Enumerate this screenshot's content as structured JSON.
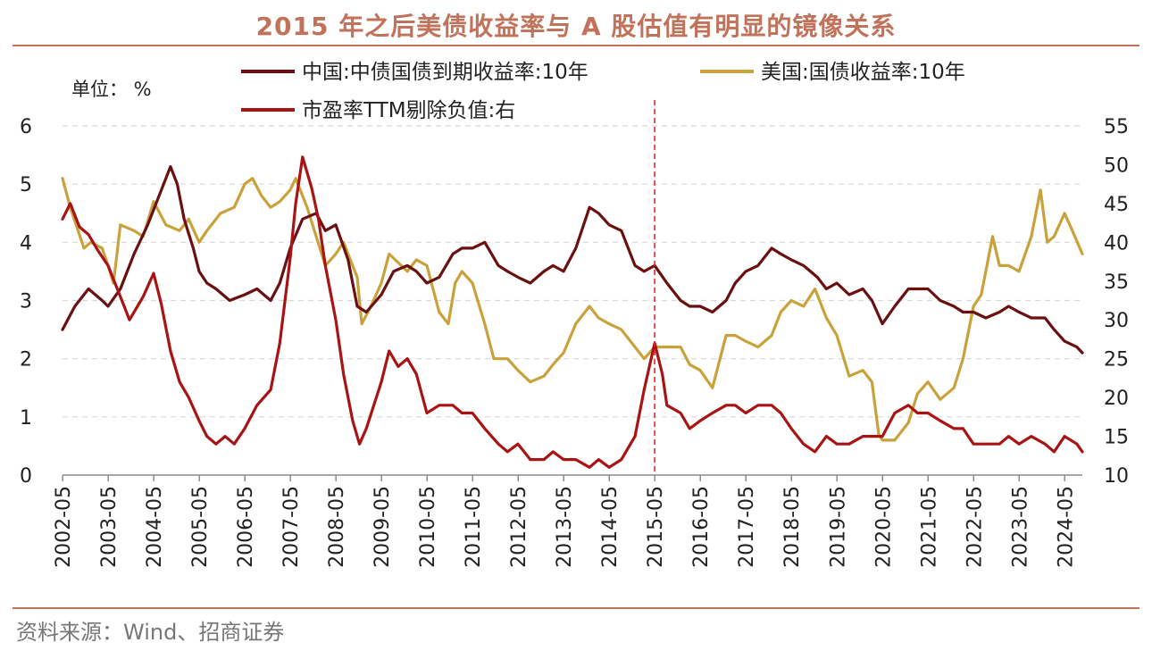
{
  "title": "2015 年之后美债收益率与 A 股估值有明显的镜像关系",
  "source": "资料来源：Wind、招商证券",
  "chart_data": {
    "type": "line",
    "unit_label": "单位： %",
    "x_tick_labels": [
      "2002-05",
      "2003-05",
      "2004-05",
      "2005-05",
      "2006-05",
      "2007-05",
      "2008-05",
      "2009-05",
      "2010-05",
      "2011-05",
      "2012-05",
      "2013-05",
      "2014-05",
      "2015-05",
      "2016-05",
      "2017-05",
      "2018-05",
      "2019-05",
      "2020-05",
      "2021-05",
      "2022-05",
      "2023-05",
      "2024-05"
    ],
    "x_range": [
      2002.33,
      2024.72
    ],
    "y_left": {
      "ticks": [
        "0",
        "1",
        "2",
        "3",
        "4",
        "5",
        "6"
      ],
      "range": [
        0,
        6
      ]
    },
    "y_right": {
      "ticks": [
        "10",
        "15",
        "20",
        "25",
        "30",
        "35",
        "40",
        "45",
        "50",
        "55"
      ],
      "range": [
        10,
        55
      ]
    },
    "marker_line": {
      "x": 2015.33,
      "color": "#e8262a",
      "style": "dashed"
    },
    "series": [
      {
        "name": "中国:中债国债到期收益率:10年",
        "axis": "left",
        "color": "#6b1010",
        "points": [
          [
            2002.33,
            2.5
          ],
          [
            2002.6,
            2.9
          ],
          [
            2002.9,
            3.2
          ],
          [
            2003.2,
            3.0
          ],
          [
            2003.33,
            2.9
          ],
          [
            2003.6,
            3.2
          ],
          [
            2003.9,
            3.8
          ],
          [
            2004.2,
            4.3
          ],
          [
            2004.5,
            4.9
          ],
          [
            2004.7,
            5.3
          ],
          [
            2004.85,
            5.0
          ],
          [
            2005.0,
            4.4
          ],
          [
            2005.2,
            3.9
          ],
          [
            2005.33,
            3.5
          ],
          [
            2005.5,
            3.3
          ],
          [
            2005.7,
            3.2
          ],
          [
            2006.0,
            3.0
          ],
          [
            2006.33,
            3.1
          ],
          [
            2006.6,
            3.2
          ],
          [
            2006.9,
            3.0
          ],
          [
            2007.1,
            3.3
          ],
          [
            2007.33,
            3.9
          ],
          [
            2007.6,
            4.4
          ],
          [
            2007.9,
            4.5
          ],
          [
            2008.1,
            4.2
          ],
          [
            2008.33,
            4.3
          ],
          [
            2008.6,
            3.7
          ],
          [
            2008.8,
            2.9
          ],
          [
            2009.0,
            2.8
          ],
          [
            2009.33,
            3.1
          ],
          [
            2009.6,
            3.5
          ],
          [
            2009.9,
            3.6
          ],
          [
            2010.1,
            3.5
          ],
          [
            2010.33,
            3.3
          ],
          [
            2010.6,
            3.4
          ],
          [
            2010.9,
            3.8
          ],
          [
            2011.1,
            3.9
          ],
          [
            2011.33,
            3.9
          ],
          [
            2011.6,
            4.0
          ],
          [
            2011.9,
            3.6
          ],
          [
            2012.1,
            3.5
          ],
          [
            2012.33,
            3.4
          ],
          [
            2012.6,
            3.3
          ],
          [
            2012.9,
            3.5
          ],
          [
            2013.1,
            3.6
          ],
          [
            2013.33,
            3.5
          ],
          [
            2013.6,
            3.9
          ],
          [
            2013.9,
            4.6
          ],
          [
            2014.1,
            4.5
          ],
          [
            2014.33,
            4.3
          ],
          [
            2014.6,
            4.2
          ],
          [
            2014.9,
            3.6
          ],
          [
            2015.1,
            3.5
          ],
          [
            2015.33,
            3.6
          ],
          [
            2015.6,
            3.3
          ],
          [
            2015.9,
            3.0
          ],
          [
            2016.1,
            2.9
          ],
          [
            2016.33,
            2.9
          ],
          [
            2016.6,
            2.8
          ],
          [
            2016.9,
            3.0
          ],
          [
            2017.1,
            3.3
          ],
          [
            2017.33,
            3.5
          ],
          [
            2017.6,
            3.6
          ],
          [
            2017.9,
            3.9
          ],
          [
            2018.1,
            3.8
          ],
          [
            2018.33,
            3.7
          ],
          [
            2018.6,
            3.6
          ],
          [
            2018.9,
            3.4
          ],
          [
            2019.1,
            3.2
          ],
          [
            2019.33,
            3.3
          ],
          [
            2019.6,
            3.1
          ],
          [
            2019.9,
            3.2
          ],
          [
            2020.1,
            3.0
          ],
          [
            2020.33,
            2.6
          ],
          [
            2020.6,
            2.9
          ],
          [
            2020.9,
            3.2
          ],
          [
            2021.1,
            3.2
          ],
          [
            2021.33,
            3.2
          ],
          [
            2021.6,
            3.0
          ],
          [
            2021.9,
            2.9
          ],
          [
            2022.1,
            2.8
          ],
          [
            2022.33,
            2.8
          ],
          [
            2022.6,
            2.7
          ],
          [
            2022.9,
            2.8
          ],
          [
            2023.1,
            2.9
          ],
          [
            2023.33,
            2.8
          ],
          [
            2023.6,
            2.7
          ],
          [
            2023.9,
            2.7
          ],
          [
            2024.1,
            2.5
          ],
          [
            2024.33,
            2.3
          ],
          [
            2024.6,
            2.2
          ],
          [
            2024.72,
            2.1
          ]
        ]
      },
      {
        "name": "美国:国债收益率:10年",
        "axis": "left",
        "color": "#c9a23c",
        "points": [
          [
            2002.33,
            5.1
          ],
          [
            2002.5,
            4.6
          ],
          [
            2002.8,
            3.9
          ],
          [
            2002.95,
            4.0
          ],
          [
            2003.2,
            3.9
          ],
          [
            2003.33,
            3.6
          ],
          [
            2003.45,
            3.3
          ],
          [
            2003.6,
            4.3
          ],
          [
            2003.9,
            4.2
          ],
          [
            2004.1,
            4.1
          ],
          [
            2004.33,
            4.7
          ],
          [
            2004.6,
            4.3
          ],
          [
            2004.9,
            4.2
          ],
          [
            2005.1,
            4.4
          ],
          [
            2005.33,
            4.0
          ],
          [
            2005.5,
            4.2
          ],
          [
            2005.8,
            4.5
          ],
          [
            2006.1,
            4.6
          ],
          [
            2006.33,
            5.0
          ],
          [
            2006.5,
            5.1
          ],
          [
            2006.7,
            4.8
          ],
          [
            2006.9,
            4.6
          ],
          [
            2007.1,
            4.7
          ],
          [
            2007.33,
            4.9
          ],
          [
            2007.45,
            5.1
          ],
          [
            2007.7,
            4.6
          ],
          [
            2007.9,
            4.1
          ],
          [
            2008.1,
            3.6
          ],
          [
            2008.33,
            3.8
          ],
          [
            2008.5,
            4.0
          ],
          [
            2008.8,
            3.4
          ],
          [
            2008.9,
            2.6
          ],
          [
            2009.1,
            2.9
          ],
          [
            2009.33,
            3.3
          ],
          [
            2009.5,
            3.8
          ],
          [
            2009.9,
            3.5
          ],
          [
            2010.1,
            3.7
          ],
          [
            2010.33,
            3.6
          ],
          [
            2010.6,
            2.8
          ],
          [
            2010.8,
            2.6
          ],
          [
            2010.95,
            3.3
          ],
          [
            2011.1,
            3.5
          ],
          [
            2011.33,
            3.3
          ],
          [
            2011.6,
            2.6
          ],
          [
            2011.8,
            2.0
          ],
          [
            2012.1,
            2.0
          ],
          [
            2012.33,
            1.8
          ],
          [
            2012.6,
            1.6
          ],
          [
            2012.9,
            1.7
          ],
          [
            2013.1,
            1.9
          ],
          [
            2013.33,
            2.1
          ],
          [
            2013.6,
            2.6
          ],
          [
            2013.9,
            2.9
          ],
          [
            2014.1,
            2.7
          ],
          [
            2014.33,
            2.6
          ],
          [
            2014.6,
            2.5
          ],
          [
            2014.9,
            2.2
          ],
          [
            2015.1,
            2.0
          ],
          [
            2015.33,
            2.2
          ],
          [
            2015.6,
            2.2
          ],
          [
            2015.9,
            2.2
          ],
          [
            2016.1,
            1.9
          ],
          [
            2016.33,
            1.8
          ],
          [
            2016.6,
            1.5
          ],
          [
            2016.9,
            2.4
          ],
          [
            2017.1,
            2.4
          ],
          [
            2017.33,
            2.3
          ],
          [
            2017.6,
            2.2
          ],
          [
            2017.9,
            2.4
          ],
          [
            2018.1,
            2.8
          ],
          [
            2018.33,
            3.0
          ],
          [
            2018.6,
            2.9
          ],
          [
            2018.85,
            3.2
          ],
          [
            2019.1,
            2.7
          ],
          [
            2019.33,
            2.4
          ],
          [
            2019.6,
            1.7
          ],
          [
            2019.9,
            1.8
          ],
          [
            2020.1,
            1.6
          ],
          [
            2020.25,
            0.7
          ],
          [
            2020.33,
            0.6
          ],
          [
            2020.6,
            0.6
          ],
          [
            2020.9,
            0.9
          ],
          [
            2021.1,
            1.4
          ],
          [
            2021.33,
            1.6
          ],
          [
            2021.6,
            1.3
          ],
          [
            2021.9,
            1.5
          ],
          [
            2022.1,
            2.0
          ],
          [
            2022.33,
            2.9
          ],
          [
            2022.5,
            3.1
          ],
          [
            2022.75,
            4.1
          ],
          [
            2022.9,
            3.6
          ],
          [
            2023.1,
            3.6
          ],
          [
            2023.33,
            3.5
          ],
          [
            2023.6,
            4.1
          ],
          [
            2023.8,
            4.9
          ],
          [
            2023.95,
            4.0
          ],
          [
            2024.1,
            4.1
          ],
          [
            2024.33,
            4.5
          ],
          [
            2024.5,
            4.2
          ],
          [
            2024.72,
            3.8
          ]
        ]
      },
      {
        "name": "市盈率TTM剔除负值:右",
        "axis": "right",
        "color": "#a81414",
        "points": [
          [
            2002.33,
            43
          ],
          [
            2002.5,
            45
          ],
          [
            2002.7,
            42
          ],
          [
            2002.9,
            41
          ],
          [
            2003.1,
            39
          ],
          [
            2003.33,
            37
          ],
          [
            2003.6,
            33
          ],
          [
            2003.8,
            30
          ],
          [
            2004.1,
            33
          ],
          [
            2004.33,
            36
          ],
          [
            2004.5,
            32
          ],
          [
            2004.7,
            26
          ],
          [
            2004.9,
            22
          ],
          [
            2005.1,
            20
          ],
          [
            2005.33,
            17
          ],
          [
            2005.5,
            15
          ],
          [
            2005.7,
            14
          ],
          [
            2005.9,
            15
          ],
          [
            2006.1,
            14
          ],
          [
            2006.33,
            16
          ],
          [
            2006.6,
            19
          ],
          [
            2006.9,
            21
          ],
          [
            2007.1,
            27
          ],
          [
            2007.33,
            38
          ],
          [
            2007.45,
            45
          ],
          [
            2007.6,
            51
          ],
          [
            2007.8,
            47
          ],
          [
            2007.95,
            43
          ],
          [
            2008.1,
            37
          ],
          [
            2008.33,
            30
          ],
          [
            2008.5,
            23
          ],
          [
            2008.7,
            17
          ],
          [
            2008.85,
            14
          ],
          [
            2009.0,
            16
          ],
          [
            2009.33,
            22
          ],
          [
            2009.5,
            26
          ],
          [
            2009.7,
            24
          ],
          [
            2009.9,
            25
          ],
          [
            2010.1,
            23
          ],
          [
            2010.33,
            18
          ],
          [
            2010.6,
            19
          ],
          [
            2010.9,
            19
          ],
          [
            2011.1,
            18
          ],
          [
            2011.33,
            18
          ],
          [
            2011.6,
            16
          ],
          [
            2011.9,
            14
          ],
          [
            2012.1,
            13
          ],
          [
            2012.33,
            14
          ],
          [
            2012.6,
            12
          ],
          [
            2012.9,
            12
          ],
          [
            2013.1,
            13
          ],
          [
            2013.33,
            12
          ],
          [
            2013.6,
            12
          ],
          [
            2013.9,
            11
          ],
          [
            2014.1,
            12
          ],
          [
            2014.33,
            11
          ],
          [
            2014.6,
            12
          ],
          [
            2014.9,
            15
          ],
          [
            2015.1,
            21
          ],
          [
            2015.33,
            27
          ],
          [
            2015.5,
            23
          ],
          [
            2015.6,
            19
          ],
          [
            2015.9,
            18
          ],
          [
            2016.1,
            16
          ],
          [
            2016.33,
            17
          ],
          [
            2016.6,
            18
          ],
          [
            2016.9,
            19
          ],
          [
            2017.1,
            19
          ],
          [
            2017.33,
            18
          ],
          [
            2017.6,
            19
          ],
          [
            2017.9,
            19
          ],
          [
            2018.1,
            18
          ],
          [
            2018.33,
            16
          ],
          [
            2018.6,
            14
          ],
          [
            2018.85,
            13
          ],
          [
            2019.1,
            15
          ],
          [
            2019.33,
            14
          ],
          [
            2019.6,
            14
          ],
          [
            2019.9,
            15
          ],
          [
            2020.1,
            15
          ],
          [
            2020.33,
            15
          ],
          [
            2020.6,
            18
          ],
          [
            2020.9,
            19
          ],
          [
            2021.1,
            18
          ],
          [
            2021.33,
            18
          ],
          [
            2021.6,
            17
          ],
          [
            2021.9,
            16
          ],
          [
            2022.1,
            16
          ],
          [
            2022.33,
            14
          ],
          [
            2022.6,
            14
          ],
          [
            2022.9,
            14
          ],
          [
            2023.1,
            15
          ],
          [
            2023.33,
            14
          ],
          [
            2023.6,
            15
          ],
          [
            2023.9,
            14
          ],
          [
            2024.1,
            13
          ],
          [
            2024.33,
            15
          ],
          [
            2024.6,
            14
          ],
          [
            2024.72,
            13
          ]
        ]
      }
    ]
  }
}
